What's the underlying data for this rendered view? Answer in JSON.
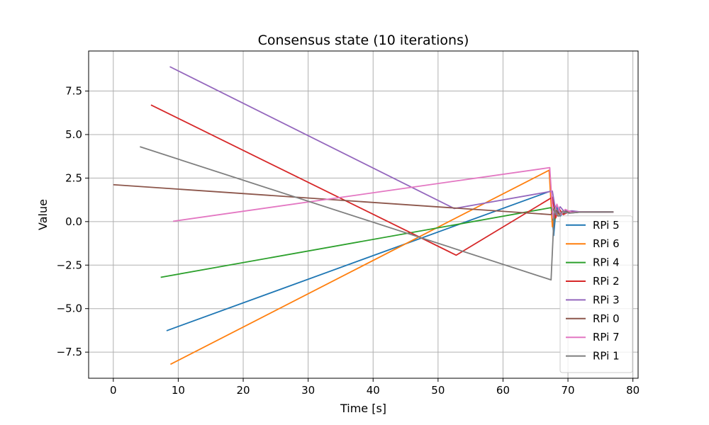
{
  "chart_data": {
    "type": "line",
    "title": "Consensus state (10 iterations)",
    "xlabel": "Time [s]",
    "ylabel": "Value",
    "xlim": [
      -3.8,
      80.8
    ],
    "ylim": [
      -9.0,
      9.8
    ],
    "xticks": [
      0,
      10,
      20,
      30,
      40,
      50,
      60,
      70,
      80
    ],
    "yticks": [
      -7.5,
      -5.0,
      -2.5,
      0.0,
      2.5,
      5.0,
      7.5
    ],
    "xtick_labels": [
      "0",
      "10",
      "20",
      "30",
      "40",
      "50",
      "60",
      "70",
      "80"
    ],
    "ytick_labels": [
      "−7.5",
      "−5.0",
      "−2.5",
      "0.0",
      "2.5",
      "5.0",
      "7.5"
    ],
    "grid": true,
    "legend_position": "lower-right",
    "series": [
      {
        "name": "RPi 5",
        "color": "#1f77b4",
        "x": [
          8.2,
          67.3,
          67.8,
          68.2,
          68.8,
          69.5,
          70.5,
          72,
          77
        ],
        "y": [
          -6.27,
          1.75,
          -0.8,
          0.9,
          0.3,
          0.65,
          0.5,
          0.55,
          0.55
        ]
      },
      {
        "name": "RPi 6",
        "color": "#ff7f0e",
        "x": [
          8.8,
          67.1,
          67.6,
          68.1,
          68.7,
          69.4,
          70.5,
          72,
          77
        ],
        "y": [
          -8.2,
          2.95,
          -0.3,
          0.7,
          0.35,
          0.6,
          0.5,
          0.55,
          0.55
        ]
      },
      {
        "name": "RPi 4",
        "color": "#2ca02c",
        "x": [
          7.3,
          67.4,
          67.9,
          68.5,
          69.2,
          70.2,
          72,
          77
        ],
        "y": [
          -3.2,
          0.8,
          0.1,
          0.65,
          0.45,
          0.58,
          0.55,
          0.55
        ]
      },
      {
        "name": "RPi 2",
        "color": "#d62728",
        "x": [
          5.8,
          52.8,
          67.6,
          68.1,
          68.6,
          69.3,
          70.3,
          72,
          77
        ],
        "y": [
          6.7,
          -1.93,
          1.4,
          0.2,
          0.75,
          0.4,
          0.6,
          0.55,
          0.55
        ]
      },
      {
        "name": "RPi 3",
        "color": "#9467bd",
        "x": [
          8.7,
          52.5,
          67.6,
          68.2,
          68.8,
          69.6,
          70.6,
          72,
          77
        ],
        "y": [
          8.9,
          0.75,
          1.75,
          0.4,
          0.85,
          0.5,
          0.62,
          0.55,
          0.55
        ]
      },
      {
        "name": "RPi 0",
        "color": "#8c564b",
        "x": [
          0.0,
          67.4,
          67.9,
          68.6,
          69.4,
          70.4,
          72,
          77
        ],
        "y": [
          2.12,
          0.4,
          0.8,
          0.45,
          0.6,
          0.52,
          0.55,
          0.55
        ]
      },
      {
        "name": "RPi 7",
        "color": "#e377c2",
        "x": [
          9.2,
          67.2,
          67.7,
          68.3,
          68.9,
          69.6,
          70.6,
          72,
          77
        ],
        "y": [
          0.02,
          3.1,
          0.2,
          1.0,
          0.4,
          0.7,
          0.52,
          0.56,
          0.55
        ]
      },
      {
        "name": "RPi 1",
        "color": "#7f7f7f",
        "x": [
          4.1,
          67.4,
          67.9,
          68.5,
          69.2,
          70.2,
          72,
          77
        ],
        "y": [
          4.3,
          -3.35,
          0.7,
          0.3,
          0.6,
          0.48,
          0.55,
          0.55
        ]
      }
    ]
  }
}
